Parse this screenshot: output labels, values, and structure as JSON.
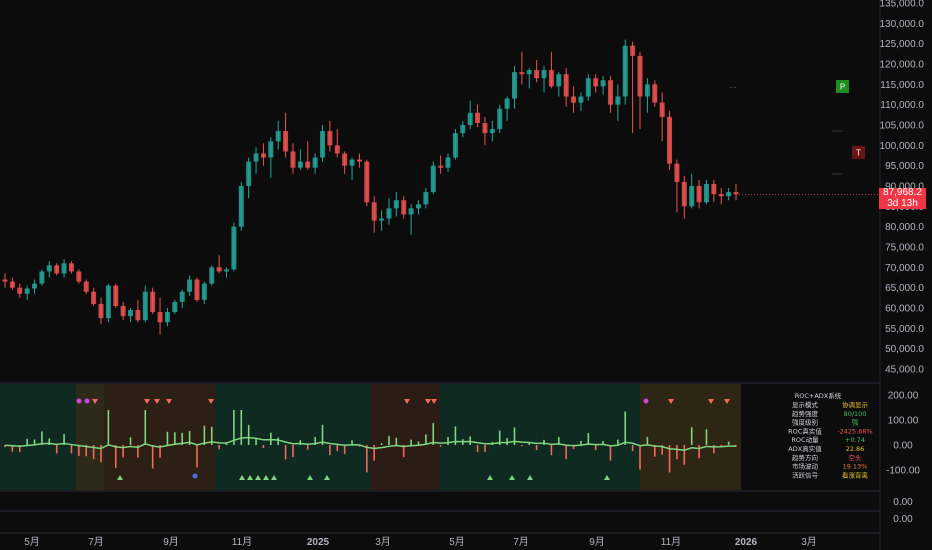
{
  "price_axis": {
    "ticks": [
      "135,000.0",
      "130,000.0",
      "125,000.0",
      "120,000.0",
      "115,000.0",
      "110,000.0",
      "105,000.0",
      "100,000.0",
      "95,000.0",
      "90,000.0",
      "85,000.0",
      "80,000.0",
      "75,000.0",
      "70,000.0",
      "65,000.0",
      "60,000.0",
      "55,000.0",
      "50,000.0",
      "45,000.0"
    ],
    "current_price": "87,968.2",
    "countdown": "3d 13h"
  },
  "osc_axis": {
    "ticks": [
      "200.00",
      "100.00",
      "0.00",
      "-100.00"
    ]
  },
  "extra_axis": {
    "ticks": [
      "0.00",
      "0.00"
    ]
  },
  "time_axis": {
    "labels": [
      "5月",
      "7月",
      "9月",
      "11月",
      "2025",
      "3月",
      "5月",
      "7月",
      "9月",
      "11月",
      "2026",
      "3月"
    ]
  },
  "markers": {
    "p_label": "P",
    "t_label": "T",
    "dots_label": "···"
  },
  "table": {
    "title": "ROC+ADX系统",
    "rows": [
      {
        "label": "显示模式",
        "value": "协调显示",
        "color": "#e6c229"
      },
      {
        "label": "趋势强度",
        "value": "80/100",
        "color": "#43c16a"
      },
      {
        "label": "强度级别",
        "value": "强",
        "color": "#43c16a"
      },
      {
        "label": "ROC真实值",
        "value": "-2425.68%",
        "color": "#f2545b"
      },
      {
        "label": "ROC动量",
        "value": "+0.74",
        "color": "#43c16a"
      },
      {
        "label": "ADX真实值",
        "value": "22.86",
        "color": "#e6c229"
      },
      {
        "label": "趋势方向",
        "value": "空头",
        "color": "#f2545b"
      },
      {
        "label": "市场波动",
        "value": "19.13%",
        "color": "#e07a3a"
      },
      {
        "label": "活跃信号",
        "value": "看涨背离",
        "color": "#e6c229"
      }
    ]
  },
  "colors": {
    "up": "#26a69a",
    "down": "#ef5350",
    "osc_up": "#7fd67f",
    "osc_down": "#f4685e",
    "bg": "#0c0c0d"
  },
  "chart_data": {
    "type": "candlestick",
    "x_labels": [
      "5月",
      "7月",
      "9月",
      "11月",
      "2025",
      "3月",
      "5月",
      "7月",
      "9月",
      "11月",
      "2026",
      "3月"
    ],
    "ylim": [
      45000,
      135000
    ],
    "candles": [
      [
        67000,
        68500,
        65000,
        66500
      ],
      [
        66500,
        67500,
        64500,
        65000
      ],
      [
        65000,
        66000,
        62500,
        63500
      ],
      [
        63500,
        65500,
        62000,
        64800
      ],
      [
        64800,
        67000,
        63500,
        66000
      ],
      [
        66000,
        69500,
        65500,
        69000
      ],
      [
        69000,
        71500,
        67500,
        70500
      ],
      [
        70500,
        71000,
        68000,
        68500
      ],
      [
        68500,
        72000,
        67500,
        71000
      ],
      [
        71000,
        71500,
        68500,
        69000
      ],
      [
        69000,
        69500,
        66000,
        66500
      ],
      [
        66500,
        67000,
        63500,
        64000
      ],
      [
        64000,
        65000,
        60500,
        61000
      ],
      [
        61000,
        62500,
        56000,
        57500
      ],
      [
        57500,
        66000,
        56500,
        65500
      ],
      [
        65500,
        66000,
        60000,
        60500
      ],
      [
        60500,
        61500,
        57000,
        58000
      ],
      [
        58000,
        60000,
        56500,
        59500
      ],
      [
        59500,
        62000,
        56500,
        57000
      ],
      [
        57000,
        65500,
        56500,
        64000
      ],
      [
        64000,
        65000,
        58500,
        59000
      ],
      [
        59000,
        62500,
        53500,
        56500
      ],
      [
        56500,
        60000,
        55500,
        59000
      ],
      [
        59000,
        62000,
        58500,
        61500
      ],
      [
        61500,
        64500,
        60000,
        64000
      ],
      [
        64000,
        68000,
        63000,
        67000
      ],
      [
        67000,
        67500,
        61500,
        62000
      ],
      [
        62000,
        66500,
        61000,
        66000
      ],
      [
        66000,
        70500,
        65500,
        70000
      ],
      [
        70000,
        73000,
        68500,
        69000
      ],
      [
        69000,
        70000,
        67500,
        69500
      ],
      [
        69500,
        81000,
        69000,
        80000
      ],
      [
        80000,
        91000,
        79000,
        90000
      ],
      [
        90000,
        97000,
        87000,
        96000
      ],
      [
        96000,
        99500,
        93000,
        98000
      ],
      [
        98000,
        100500,
        95000,
        97000
      ],
      [
        97000,
        102000,
        92000,
        101000
      ],
      [
        101000,
        106000,
        99000,
        103500
      ],
      [
        103500,
        108000,
        97000,
        98500
      ],
      [
        98500,
        100500,
        93000,
        94500
      ],
      [
        94500,
        99000,
        94000,
        96000
      ],
      [
        96000,
        101000,
        94000,
        94500
      ],
      [
        94500,
        98000,
        93000,
        97000
      ],
      [
        97000,
        105000,
        96000,
        103500
      ],
      [
        103500,
        106000,
        98500,
        100000
      ],
      [
        100000,
        104000,
        97000,
        98000
      ],
      [
        98000,
        98500,
        93000,
        95000
      ],
      [
        95000,
        97000,
        91500,
        96500
      ],
      [
        96500,
        98000,
        94500,
        96000
      ],
      [
        96000,
        96500,
        85000,
        86000
      ],
      [
        86000,
        87500,
        78500,
        81500
      ],
      [
        81500,
        84000,
        79000,
        82000
      ],
      [
        82000,
        87000,
        80500,
        84500
      ],
      [
        84500,
        88500,
        82500,
        86500
      ],
      [
        86500,
        87500,
        82000,
        83000
      ],
      [
        83000,
        85500,
        78000,
        84500
      ],
      [
        84500,
        86500,
        83000,
        85500
      ],
      [
        85500,
        89500,
        84500,
        88500
      ],
      [
        88500,
        96000,
        88000,
        95000
      ],
      [
        95000,
        97500,
        93000,
        94500
      ],
      [
        94500,
        98000,
        93500,
        97000
      ],
      [
        97000,
        104000,
        96500,
        103000
      ],
      [
        103000,
        106000,
        102000,
        105000
      ],
      [
        105000,
        111000,
        104000,
        108000
      ],
      [
        108000,
        110000,
        104500,
        105500
      ],
      [
        105500,
        107000,
        100000,
        103000
      ],
      [
        103000,
        106000,
        101000,
        104000
      ],
      [
        104000,
        110000,
        103000,
        109000
      ],
      [
        109000,
        112000,
        106000,
        111500
      ],
      [
        111500,
        119500,
        109000,
        118000
      ],
      [
        118000,
        123000,
        115000,
        117500
      ],
      [
        117500,
        119000,
        114000,
        118500
      ],
      [
        118500,
        121000,
        115500,
        116500
      ],
      [
        116500,
        119500,
        113000,
        118500
      ],
      [
        118500,
        123000,
        114000,
        114500
      ],
      [
        114500,
        118000,
        112000,
        117500
      ],
      [
        117500,
        119000,
        109500,
        112000
      ],
      [
        112000,
        114500,
        108000,
        110500
      ],
      [
        110500,
        113000,
        108500,
        112000
      ],
      [
        112000,
        117500,
        111000,
        116500
      ],
      [
        116500,
        117500,
        113000,
        114500
      ],
      [
        114500,
        117000,
        112500,
        116000
      ],
      [
        116000,
        117000,
        108000,
        110000
      ],
      [
        110000,
        115000,
        106000,
        112000
      ],
      [
        112000,
        126000,
        110000,
        124500
      ],
      [
        124500,
        125500,
        103000,
        122000
      ],
      [
        122000,
        123000,
        104000,
        112000
      ],
      [
        112000,
        116500,
        108000,
        115000
      ],
      [
        115000,
        116000,
        109500,
        110500
      ],
      [
        110500,
        113000,
        101000,
        107000
      ],
      [
        107000,
        108500,
        94000,
        95500
      ],
      [
        95500,
        96500,
        83500,
        91000
      ],
      [
        91000,
        92500,
        82000,
        85000
      ],
      [
        85000,
        93000,
        84500,
        90000
      ],
      [
        90000,
        91500,
        84500,
        86000
      ],
      [
        86000,
        91500,
        85500,
        90500
      ],
      [
        90500,
        91500,
        86000,
        88000
      ],
      [
        88000,
        89500,
        85500,
        87500
      ],
      [
        87500,
        89500,
        86500,
        88500
      ],
      [
        88500,
        90500,
        86500,
        87968
      ]
    ]
  }
}
